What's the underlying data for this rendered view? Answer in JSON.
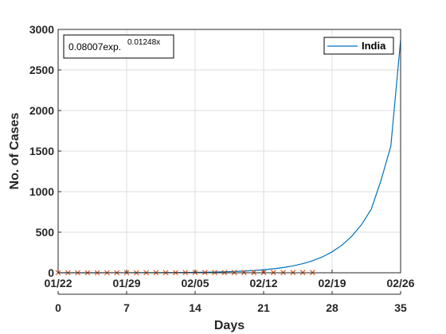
{
  "chart_data": {
    "type": "line",
    "xlabel": "Days",
    "ylabel": "No. of Cases",
    "xlim": [
      0,
      35
    ],
    "ylim": [
      0,
      3000
    ],
    "grid": true,
    "bottom_ticks": [
      0,
      7,
      14,
      21,
      28,
      35
    ],
    "date_ticks": [
      {
        "x": 0,
        "label": "01/22"
      },
      {
        "x": 7,
        "label": "01/29"
      },
      {
        "x": 14,
        "label": "02/05"
      },
      {
        "x": 21,
        "label": "02/12"
      },
      {
        "x": 28,
        "label": "02/19"
      },
      {
        "x": 35,
        "label": "02/26"
      }
    ],
    "y_ticks": [
      0,
      500,
      1000,
      1500,
      2000,
      2500,
      3000
    ],
    "legend": {
      "placement": "top-right",
      "entries": [
        "India"
      ]
    },
    "annotation": {
      "base": "0.08007exp.",
      "exponent": "0.01248x"
    },
    "series": [
      {
        "name": "India",
        "kind": "line",
        "color": "#0072BD",
        "x": [
          0,
          1,
          2,
          3,
          4,
          5,
          6,
          7,
          8,
          9,
          10,
          11,
          12,
          13,
          14,
          15,
          16,
          17,
          18,
          19,
          20,
          21,
          22,
          23,
          24,
          25,
          26,
          27,
          28,
          29,
          30,
          31,
          32,
          33,
          34,
          35
        ],
        "y": [
          0.1,
          0.1,
          0.2,
          0.2,
          0.3,
          0.4,
          0.6,
          0.8,
          1,
          1.3,
          1.7,
          2.3,
          3,
          4,
          5.3,
          7,
          9.2,
          12,
          16,
          21,
          28,
          37,
          49,
          64,
          85,
          112,
          148,
          195,
          258,
          340,
          449,
          593,
          783,
          1140,
          1560,
          2870
        ]
      },
      {
        "kind": "markers",
        "marker": "x",
        "color": "#D95319",
        "x": [
          0,
          1,
          2,
          3,
          4,
          5,
          6,
          7,
          8,
          9,
          10,
          11,
          12,
          13,
          14,
          15,
          16,
          17,
          18,
          19,
          20,
          21,
          22,
          23,
          24,
          25,
          26
        ],
        "y": [
          0,
          0,
          0,
          0,
          0,
          0,
          0,
          0,
          0,
          1,
          1,
          1,
          1,
          2,
          2,
          3,
          3,
          3,
          3,
          3,
          3,
          3,
          3,
          3,
          3,
          3,
          3
        ]
      }
    ]
  }
}
